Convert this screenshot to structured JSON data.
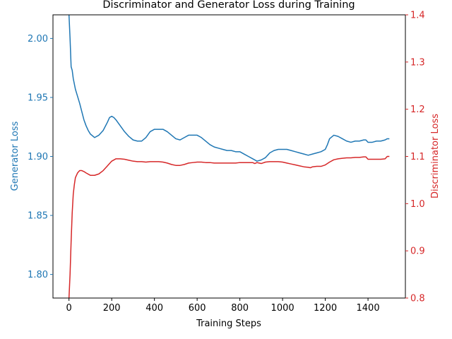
{
  "chart_data": {
    "type": "line",
    "title": "Discriminator and Generator Loss during Training",
    "xlabel": "Training Steps",
    "xlim": [
      -75,
      1575
    ],
    "xticks": [
      0,
      200,
      400,
      600,
      800,
      1000,
      1200,
      1400
    ],
    "y_left": {
      "label": "Generator Loss",
      "color": "#1f77b4",
      "lim": [
        1.78,
        2.02
      ],
      "ticks": [
        "1.80",
        "1.85",
        "1.90",
        "1.95",
        "2.00"
      ]
    },
    "y_right": {
      "label": "Discriminator Loss",
      "color": "#d62728",
      "lim": [
        0.8,
        1.4
      ],
      "ticks": [
        "0.8",
        "0.9",
        "1.0",
        "1.1",
        "1.2",
        "1.3",
        "1.4"
      ]
    },
    "grid": false,
    "series": [
      {
        "axis": "left",
        "color": "#1f77b4",
        "x": [
          0,
          5,
          10,
          15,
          20,
          30,
          40,
          50,
          60,
          70,
          80,
          90,
          100,
          120,
          140,
          160,
          180,
          190,
          200,
          210,
          220,
          240,
          260,
          280,
          300,
          320,
          340,
          360,
          380,
          400,
          420,
          440,
          460,
          480,
          500,
          520,
          540,
          560,
          580,
          600,
          620,
          640,
          660,
          680,
          700,
          720,
          740,
          760,
          780,
          800,
          820,
          840,
          860,
          880,
          900,
          920,
          940,
          960,
          980,
          1000,
          1020,
          1040,
          1060,
          1080,
          1100,
          1120,
          1140,
          1160,
          1180,
          1200,
          1210,
          1220,
          1240,
          1260,
          1280,
          1300,
          1320,
          1340,
          1360,
          1380,
          1390,
          1400,
          1420,
          1440,
          1460,
          1480,
          1490,
          1500
        ],
        "y": [
          2.02,
          2.0,
          1.976,
          1.973,
          1.966,
          1.957,
          1.951,
          1.945,
          1.938,
          1.931,
          1.926,
          1.922,
          1.919,
          1.916,
          1.918,
          1.922,
          1.929,
          1.933,
          1.934,
          1.933,
          1.931,
          1.926,
          1.921,
          1.917,
          1.914,
          1.913,
          1.913,
          1.916,
          1.921,
          1.923,
          1.923,
          1.923,
          1.921,
          1.918,
          1.915,
          1.914,
          1.916,
          1.918,
          1.918,
          1.918,
          1.916,
          1.913,
          1.91,
          1.908,
          1.907,
          1.906,
          1.905,
          1.905,
          1.904,
          1.904,
          1.902,
          1.9,
          1.898,
          1.896,
          1.897,
          1.899,
          1.903,
          1.905,
          1.906,
          1.906,
          1.906,
          1.905,
          1.904,
          1.903,
          1.902,
          1.901,
          1.902,
          1.903,
          1.904,
          1.906,
          1.91,
          1.915,
          1.918,
          1.917,
          1.915,
          1.913,
          1.912,
          1.913,
          1.913,
          1.914,
          1.914,
          1.912,
          1.912,
          1.913,
          1.913,
          1.914,
          1.915,
          1.915
        ]
      },
      {
        "axis": "right",
        "color": "#d62728",
        "x": [
          0,
          5,
          10,
          15,
          20,
          25,
          30,
          40,
          50,
          60,
          70,
          80,
          100,
          120,
          140,
          160,
          180,
          200,
          220,
          240,
          260,
          280,
          300,
          320,
          340,
          360,
          380,
          400,
          420,
          440,
          460,
          480,
          500,
          520,
          540,
          560,
          580,
          600,
          620,
          640,
          660,
          680,
          700,
          720,
          740,
          760,
          780,
          800,
          820,
          840,
          860,
          870,
          880,
          890,
          900,
          920,
          940,
          960,
          980,
          1000,
          1020,
          1040,
          1060,
          1080,
          1100,
          1120,
          1130,
          1140,
          1160,
          1180,
          1200,
          1220,
          1240,
          1260,
          1280,
          1300,
          1320,
          1340,
          1360,
          1380,
          1390,
          1400,
          1420,
          1440,
          1460,
          1480,
          1490,
          1500
        ],
        "y": [
          0.8,
          0.85,
          0.92,
          0.98,
          1.02,
          1.04,
          1.055,
          1.065,
          1.07,
          1.07,
          1.068,
          1.065,
          1.06,
          1.06,
          1.063,
          1.07,
          1.08,
          1.09,
          1.095,
          1.095,
          1.094,
          1.092,
          1.09,
          1.089,
          1.089,
          1.088,
          1.089,
          1.089,
          1.089,
          1.088,
          1.086,
          1.083,
          1.081,
          1.081,
          1.083,
          1.086,
          1.087,
          1.088,
          1.088,
          1.087,
          1.087,
          1.086,
          1.086,
          1.086,
          1.086,
          1.086,
          1.086,
          1.087,
          1.087,
          1.087,
          1.087,
          1.085,
          1.087,
          1.086,
          1.085,
          1.088,
          1.089,
          1.089,
          1.089,
          1.088,
          1.086,
          1.084,
          1.082,
          1.08,
          1.078,
          1.077,
          1.076,
          1.078,
          1.079,
          1.079,
          1.082,
          1.088,
          1.093,
          1.095,
          1.096,
          1.097,
          1.097,
          1.098,
          1.098,
          1.099,
          1.099,
          1.094,
          1.094,
          1.094,
          1.094,
          1.095,
          1.1,
          1.1
        ]
      }
    ]
  }
}
